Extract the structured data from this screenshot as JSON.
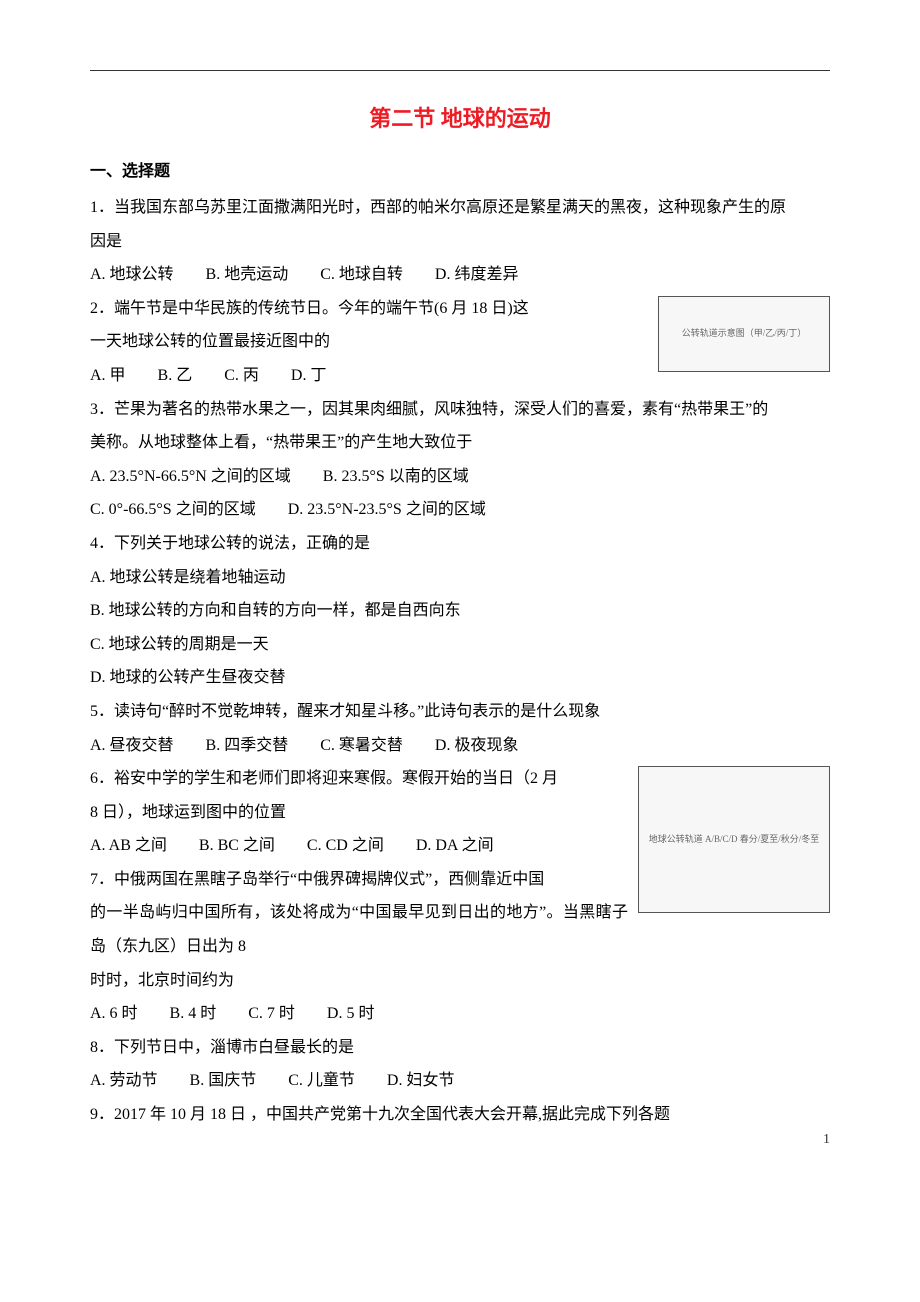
{
  "title": "第二节  地球的运动",
  "section_heading": "一、选择题",
  "page_number": "1",
  "fig1": {
    "caption": "公转轨道示意图（甲/乙/丙/丁）"
  },
  "fig2": {
    "caption": "地球公转轨道 A/B/C/D 春分/夏至/秋分/冬至"
  },
  "q1": {
    "stem_a": "1．当我国东部乌苏里江面撒满阳光时，西部的帕米尔高原还是繁星满天的黑夜，这种现象产生的原",
    "stem_b": "因是",
    "opts": "A. 地球公转　　B. 地壳运动　　C. 地球自转　　D. 纬度差异"
  },
  "q2": {
    "stem_a": "2．端午节是中华民族的传统节日。今年的端午节(6 月 18 日)这",
    "stem_b": "一天地球公转的位置最接近图中的",
    "opts": "A. 甲　　B. 乙　　C. 丙　　D. 丁"
  },
  "q3": {
    "stem_a": "3．芒果为著名的热带水果之一，因其果肉细腻，风味独特，深受人们的喜爱，素有“热带果王”的",
    "stem_b": "美称。从地球整体上看，“热带果王”的产生地大致位于",
    "opts_a": "A. 23.5°N-66.5°N 之间的区域　　B. 23.5°S 以南的区域",
    "opts_b": "C. 0°-66.5°S 之间的区域　　D. 23.5°N-23.5°S 之间的区域"
  },
  "q4": {
    "stem": "4．下列关于地球公转的说法，正确的是",
    "a": "A. 地球公转是绕着地轴运动",
    "b": "B. 地球公转的方向和自转的方向一样，都是自西向东",
    "c": "C. 地球公转的周期是一天",
    "d": "D. 地球的公转产生昼夜交替"
  },
  "q5": {
    "stem": "5．读诗句“醉时不觉乾坤转，醒来才知星斗移。”此诗句表示的是什么现象",
    "opts": "A. 昼夜交替　　B. 四季交替　　C. 寒暑交替　　D. 极夜现象"
  },
  "q6": {
    "stem_a": "6．裕安中学的学生和老师们即将迎来寒假。寒假开始的当日（2 月",
    "stem_b": "8 日），地球运到图中的位置",
    "opts": "A. AB 之间　　B. BC 之间　　C. CD 之间　　D. DA 之间"
  },
  "q7": {
    "stem_a": "7．中俄两国在黑瞎子岛举行“中俄界碑揭牌仪式”，西侧靠近中国",
    "stem_b": "的一半岛屿归中国所有，该处将成为“中国最早见到日出的地方”。当黑瞎子岛（东九区）日出为 8",
    "stem_c": "时时，北京时间约为",
    "opts": "A. 6 时　　B. 4 时　　C. 7 时　　D. 5 时"
  },
  "q8": {
    "stem": "8．下列节日中，淄博市白昼最长的是",
    "opts": "A. 劳动节　　B. 国庆节　　C. 儿童节　　D. 妇女节"
  },
  "q9": {
    "stem": "9．2017 年 10 月 18 日  ，中国共产党第十九次全国代表大会开幕,据此完成下列各题"
  }
}
